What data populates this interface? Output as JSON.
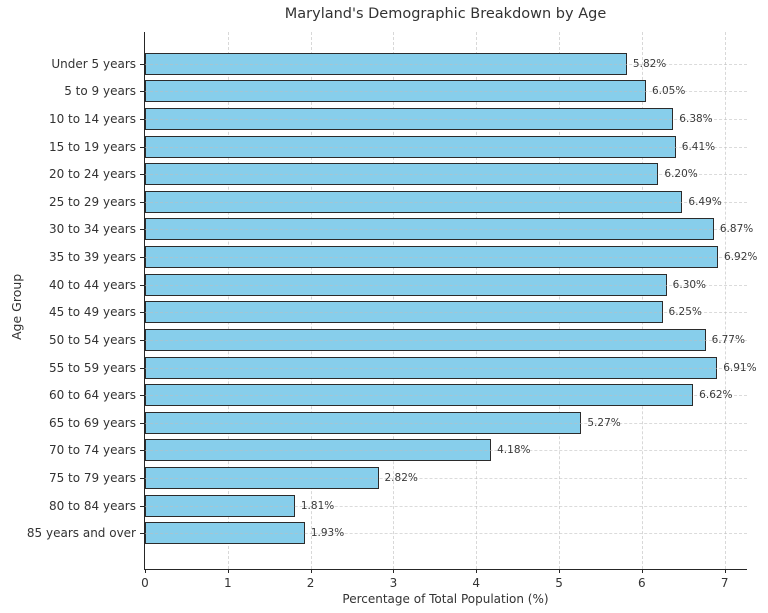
{
  "chart_data": {
    "type": "bar",
    "orientation": "horizontal",
    "title": "Maryland's Demographic Breakdown by Age",
    "xlabel": "Percentage of Total Population (%)",
    "ylabel": "Age Group",
    "categories": [
      "Under 5 years",
      "5 to 9 years",
      "10 to 14 years",
      "15 to 19 years",
      "20 to 24 years",
      "25 to 29 years",
      "30 to 34 years",
      "35 to 39 years",
      "40 to 44 years",
      "45 to 49 years",
      "50 to 54 years",
      "55 to 59 years",
      "60 to 64 years",
      "65 to 69 years",
      "70 to 74 years",
      "75 to 79 years",
      "80 to 84 years",
      "85 years and over"
    ],
    "values": [
      5.82,
      6.05,
      6.38,
      6.41,
      6.2,
      6.49,
      6.87,
      6.92,
      6.3,
      6.25,
      6.77,
      6.91,
      6.62,
      5.27,
      4.18,
      2.82,
      1.81,
      1.93
    ],
    "value_labels": [
      "5.82%",
      "6.05%",
      "6.38%",
      "6.41%",
      "6.20%",
      "6.49%",
      "6.87%",
      "6.92%",
      "6.30%",
      "6.25%",
      "6.77%",
      "6.91%",
      "6.62%",
      "5.27%",
      "4.18%",
      "2.82%",
      "1.81%",
      "1.93%"
    ],
    "x_ticks": [
      0,
      1,
      2,
      3,
      4,
      5,
      6,
      7
    ],
    "x_tick_labels": [
      "0",
      "1",
      "2",
      "3",
      "4",
      "5",
      "6",
      "7"
    ],
    "xlim": [
      0,
      7.27
    ],
    "grid": true,
    "bar_color": "#87CEEB",
    "bar_edge_color": "#2b2b2b",
    "grid_color": "#d8d8d8",
    "text_color": "#333333",
    "legend": null
  }
}
